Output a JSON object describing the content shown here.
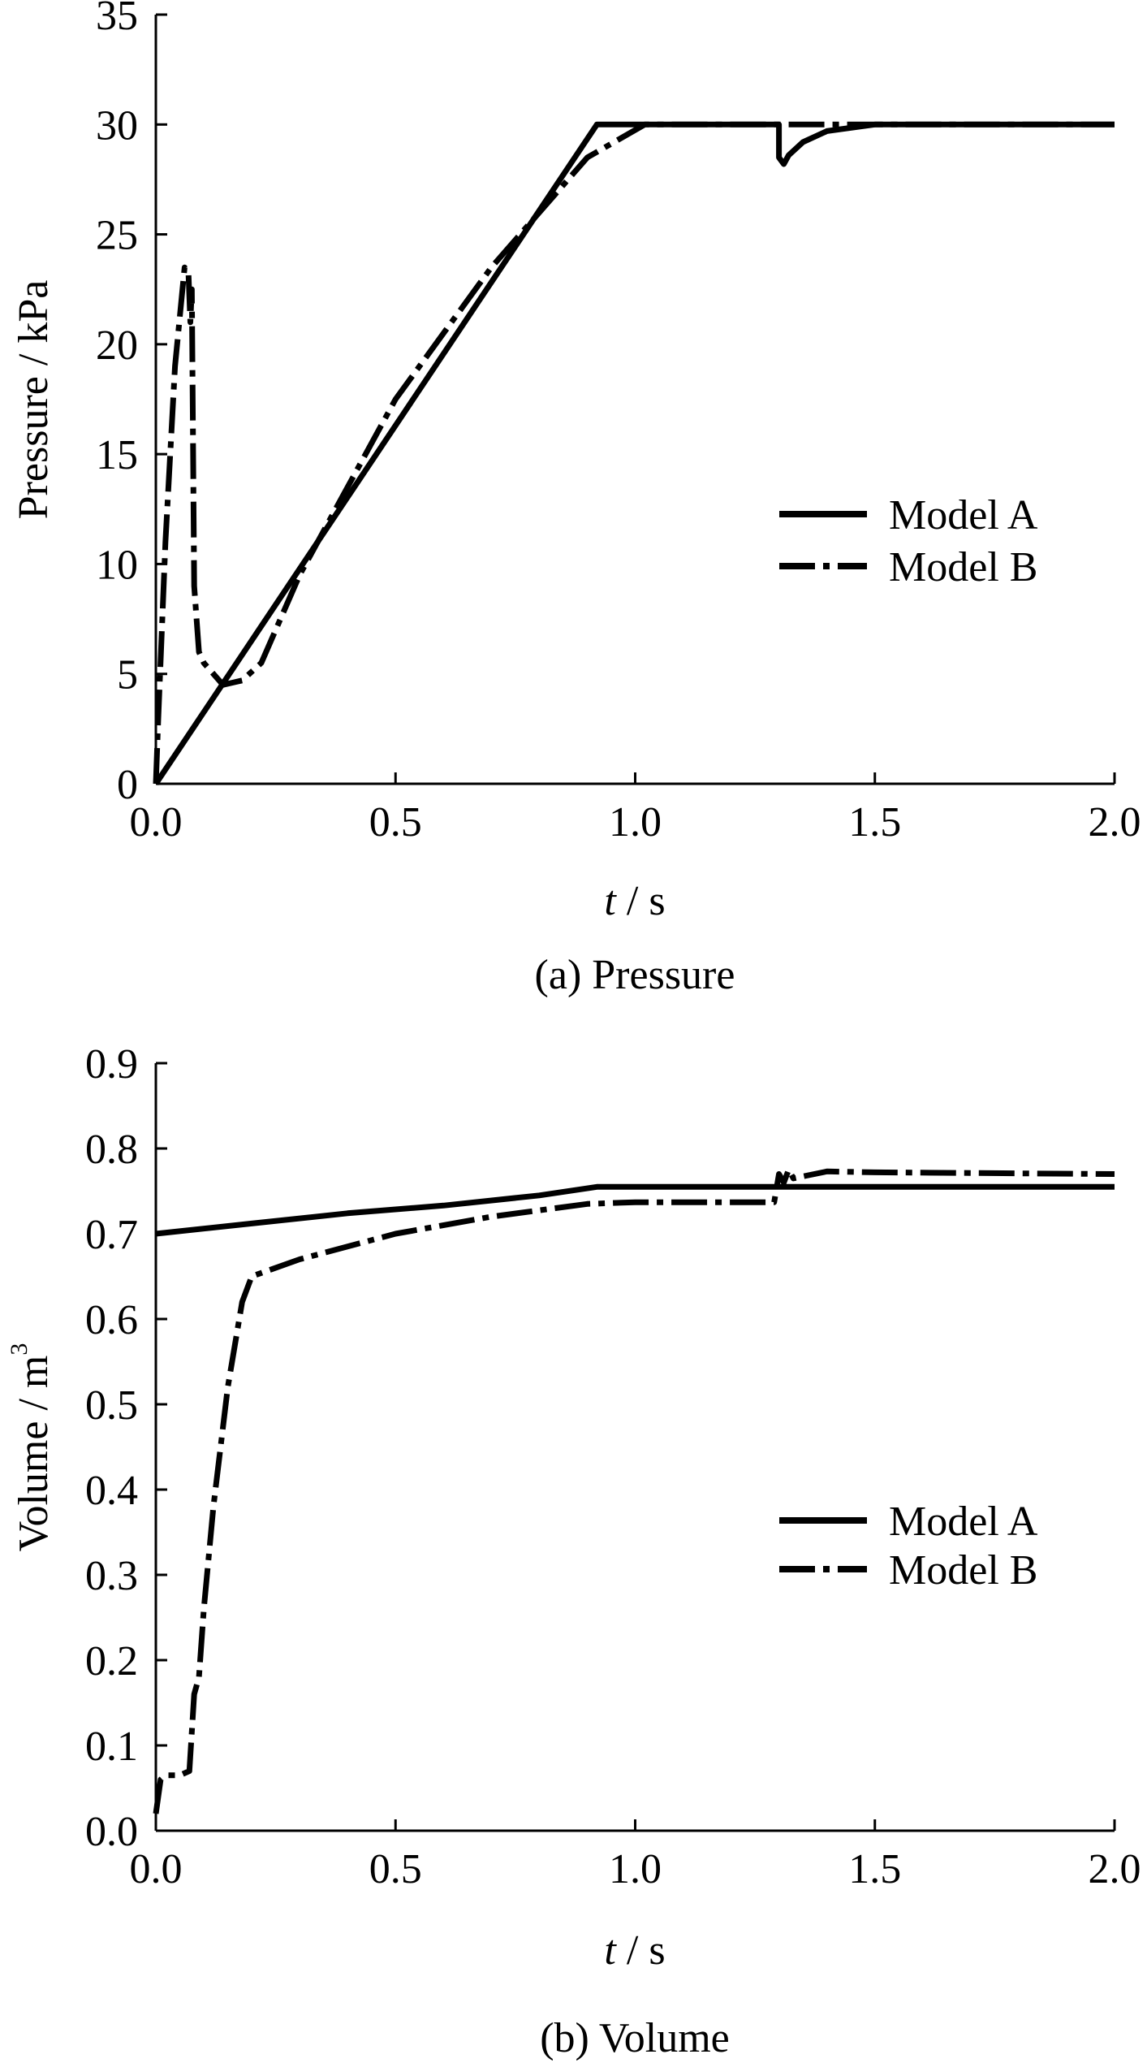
{
  "chart_data": [
    {
      "type": "line",
      "title": "",
      "caption": "(a) Pressure",
      "xlabel_italic": "t",
      "xlabel_rest": " / s",
      "ylabel": "Pressure / kPa",
      "xlim": [
        0,
        2.0
      ],
      "ylim": [
        0,
        35
      ],
      "xticks": [
        "0.0",
        "0.5",
        "1.0",
        "1.5",
        "2.0"
      ],
      "yticks": [
        "0",
        "5",
        "10",
        "15",
        "20",
        "25",
        "30",
        "35"
      ],
      "xtick_values": [
        0,
        0.5,
        1.0,
        1.5,
        2.0
      ],
      "ytick_values": [
        0,
        5,
        10,
        15,
        20,
        25,
        30,
        35
      ],
      "grid": false,
      "legend_position": "right-middle",
      "series": [
        {
          "name": "Model A",
          "style": "solid",
          "x": [
            0,
            0.92,
            1.3,
            1.3,
            1.31,
            1.32,
            1.35,
            1.4,
            1.5,
            2.0
          ],
          "y": [
            0,
            30,
            30,
            28.5,
            28.2,
            28.6,
            29.2,
            29.7,
            30,
            30
          ]
        },
        {
          "name": "Model B",
          "style": "dashdot",
          "x": [
            0,
            0.005,
            0.02,
            0.04,
            0.06,
            0.068,
            0.072,
            0.075,
            0.08,
            0.09,
            0.1,
            0.12,
            0.14,
            0.16,
            0.18,
            0.22,
            0.3,
            0.5,
            0.7,
            0.9,
            1.02,
            2.0
          ],
          "y": [
            0,
            3,
            11,
            19,
            23.5,
            23.2,
            21,
            22.5,
            9,
            6,
            5.5,
            5.0,
            4.5,
            4.6,
            4.7,
            5.5,
            9.5,
            17.5,
            23.5,
            28.5,
            30,
            30
          ]
        }
      ]
    },
    {
      "type": "line",
      "title": "",
      "caption": "(b) Volume",
      "xlabel_italic": "t",
      "xlabel_rest": " / s",
      "ylabel": "Volume / m",
      "ylabel_superscript": "3",
      "xlim": [
        0,
        2.0
      ],
      "ylim": [
        0,
        0.9
      ],
      "xticks": [
        "0.0",
        "0.5",
        "1.0",
        "1.5",
        "2.0"
      ],
      "yticks": [
        "0.0",
        "0.1",
        "0.2",
        "0.3",
        "0.4",
        "0.5",
        "0.6",
        "0.7",
        "0.8",
        "0.9"
      ],
      "xtick_values": [
        0,
        0.5,
        1.0,
        1.5,
        2.0
      ],
      "ytick_values": [
        0,
        0.1,
        0.2,
        0.3,
        0.4,
        0.5,
        0.6,
        0.7,
        0.8,
        0.9
      ],
      "grid": false,
      "legend_position": "right-middle",
      "series": [
        {
          "name": "Model A",
          "style": "solid",
          "x": [
            0,
            0.2,
            0.4,
            0.6,
            0.8,
            0.92,
            1.3,
            2.0
          ],
          "y": [
            0.7,
            0.712,
            0.724,
            0.733,
            0.745,
            0.755,
            0.755,
            0.755
          ]
        },
        {
          "name": "Model B",
          "style": "dashdot",
          "x": [
            0,
            0.01,
            0.02,
            0.05,
            0.07,
            0.08,
            0.09,
            0.1,
            0.12,
            0.15,
            0.18,
            0.2,
            0.3,
            0.5,
            0.7,
            0.9,
            1.0,
            1.29,
            1.3,
            1.31,
            1.32,
            1.33,
            1.4,
            1.5,
            2.0
          ],
          "y": [
            0.02,
            0.06,
            0.065,
            0.065,
            0.07,
            0.16,
            0.18,
            0.26,
            0.38,
            0.52,
            0.62,
            0.65,
            0.67,
            0.7,
            0.72,
            0.735,
            0.737,
            0.737,
            0.77,
            0.76,
            0.775,
            0.765,
            0.773,
            0.772,
            0.77
          ]
        }
      ]
    }
  ]
}
